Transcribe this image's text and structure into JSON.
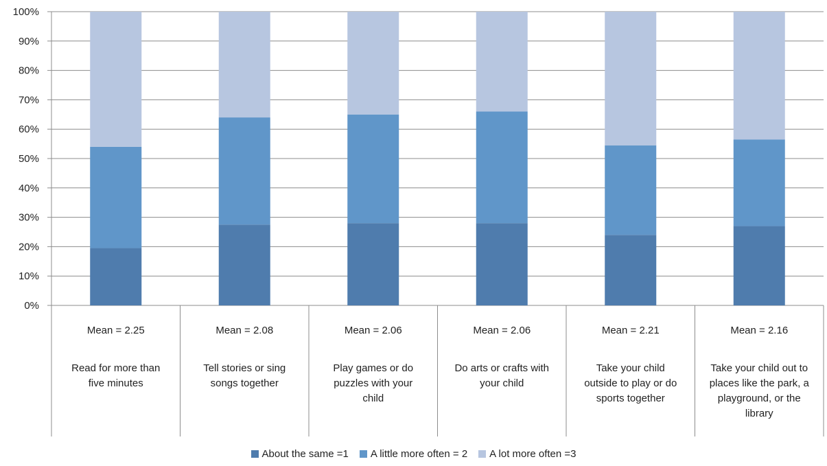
{
  "chart_data": {
    "type": "bar",
    "stacked": true,
    "percent": true,
    "categories": [
      "Read for more than five minutes",
      "Tell stories or sing songs together",
      "Play games or do puzzles with your child",
      "Do arts or crafts with your child",
      "Take your child outside to play or do sports together",
      "Take your child out to places like the park, a playground, or the library"
    ],
    "category_lines": [
      [
        "Read for more than",
        "five minutes"
      ],
      [
        "Tell stories or sing",
        "songs together"
      ],
      [
        "Play games or do",
        "puzzles with your",
        "child"
      ],
      [
        "Do arts or crafts with",
        "your child"
      ],
      [
        "Take your child",
        "outside to play or do",
        "sports together"
      ],
      [
        "Take your child out to",
        "places like the park, a",
        "playground, or the",
        "library"
      ]
    ],
    "means": [
      "Mean = 2.25",
      "Mean = 2.08",
      "Mean = 2.06",
      "Mean = 2.06",
      "Mean = 2.21",
      "Mean = 2.16"
    ],
    "series": [
      {
        "name": "About the same =1",
        "color": "#4f7cad",
        "values": [
          19.5,
          27.5,
          28,
          28,
          24,
          27
        ]
      },
      {
        "name": "A little more often = 2",
        "color": "#6096c9",
        "values": [
          34.5,
          36.5,
          37,
          38,
          30.5,
          29.5
        ]
      },
      {
        "name": "A lot more often =3",
        "color": "#b7c6e0",
        "values": [
          46,
          36,
          35,
          34,
          45.5,
          43.5
        ]
      }
    ],
    "ylim": [
      0,
      100
    ],
    "yticks": [
      "0%",
      "10%",
      "20%",
      "30%",
      "40%",
      "50%",
      "60%",
      "70%",
      "80%",
      "90%",
      "100%"
    ],
    "grid": true,
    "legend_position": "bottom"
  }
}
